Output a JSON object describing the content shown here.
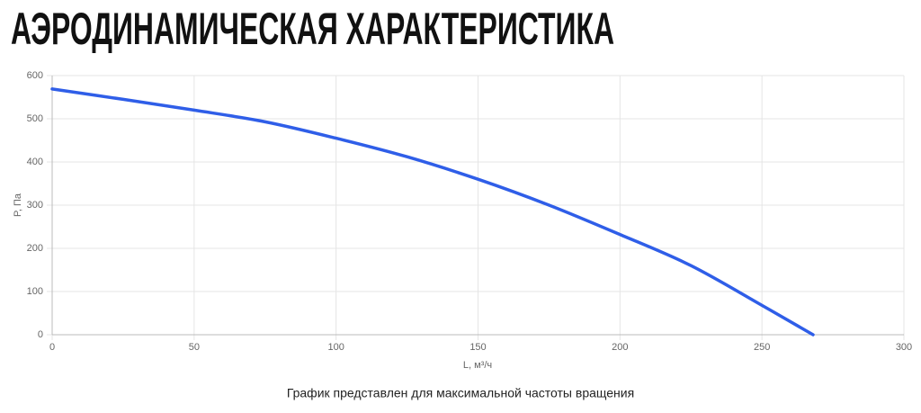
{
  "chart_data": {
    "type": "line",
    "title": "АЭРОДИНАМИЧЕСКАЯ ХАРАКТЕРИСТИКА",
    "caption": "График представлен для максимальной частоты вращения",
    "x_label": "L, м³/ч",
    "y_label": "P, Па",
    "x": [
      0,
      25,
      50,
      75,
      100,
      125,
      150,
      175,
      200,
      225,
      250,
      268
    ],
    "series": [
      {
        "name": "P",
        "color": "#2f5ee8",
        "values": [
          569,
          545,
          520,
          493,
          455,
          412,
          360,
          300,
          232,
          160,
          68,
          0
        ]
      }
    ],
    "xlim": [
      0,
      300
    ],
    "xticks": [
      0,
      50,
      100,
      150,
      200,
      250,
      300
    ],
    "ylim": [
      0,
      600
    ],
    "yticks": [
      0,
      100,
      200,
      300,
      400,
      500,
      600
    ],
    "grid": true
  }
}
